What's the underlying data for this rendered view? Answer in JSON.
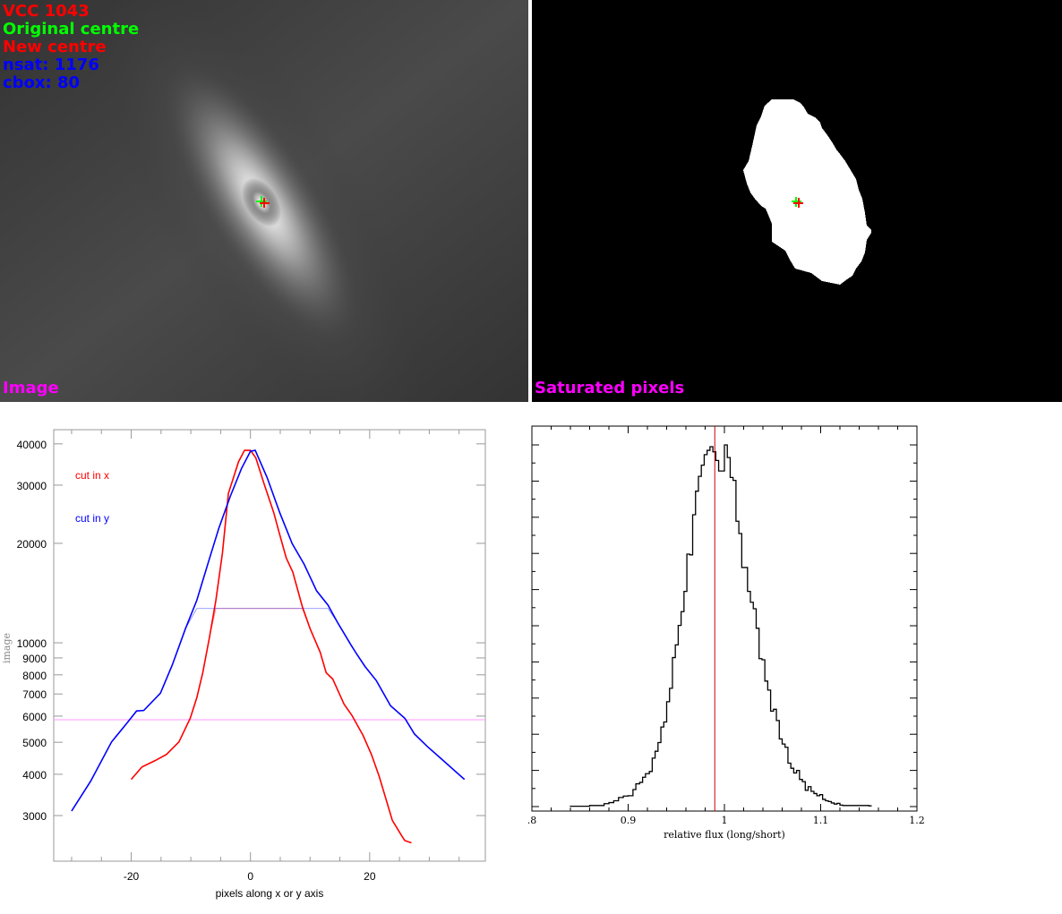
{
  "image_panel": {
    "overlay_lines": [
      {
        "text": "VCC 1043",
        "color": "#ff0000"
      },
      {
        "text": "Original centre",
        "color": "#00ff00"
      },
      {
        "text": "New centre",
        "color": "#ff0000"
      },
      {
        "text": "nsat: 1176",
        "color": "#0000ff"
      },
      {
        "text": "cbox: 80",
        "color": "#0000ff"
      }
    ],
    "label": "Image",
    "label_color": "#ff00ff",
    "original_centre_color": "#00ff00",
    "new_centre_color": "#ff0000"
  },
  "saturation_panel": {
    "label": "Saturated pixels",
    "label_color": "#ff00ff"
  },
  "chart_data": [
    {
      "type": "line",
      "xlabel": "pixels along x or y axis",
      "ylabel": "image",
      "yscale": "log",
      "xlim": [
        -33,
        39.4
      ],
      "ylim": [
        2183,
        44150
      ],
      "xticks": [
        -20,
        0,
        20
      ],
      "yticks": [
        3000,
        4000,
        5000,
        6000,
        7000,
        8000,
        9000,
        10000,
        20000,
        30000,
        40000
      ],
      "grid": false,
      "legend_placement": "top-left",
      "hline": {
        "y": 5850,
        "color": "#ff99ff"
      },
      "series": [
        {
          "name": "cut in x",
          "color": "#ff0000",
          "model_clip": 12700,
          "x": [
            -20,
            -18.2,
            -16,
            -14.1,
            -12,
            -10.1,
            -9,
            -8,
            -6.9,
            -5.8,
            -4.7,
            -3.7,
            -2,
            -1,
            0,
            0.9,
            2.3,
            3.9,
            4.9,
            6,
            7.1,
            8.7,
            10,
            11.7,
            12.7,
            13.8,
            15.7,
            17,
            18.9,
            20.3,
            21.6,
            23.8,
            25.4,
            25.9,
            27
          ],
          "y": [
            3860,
            4210,
            4400,
            4590,
            5010,
            5910,
            6820,
            8120,
            10330,
            13440,
            18680,
            28320,
            35300,
            38240,
            38240,
            36280,
            30220,
            24800,
            21280,
            18070,
            16370,
            12870,
            11040,
            9360,
            8120,
            7770,
            6520,
            6040,
            5240,
            4590,
            3940,
            2900,
            2600,
            2520,
            2480
          ]
        },
        {
          "name": "cut in y",
          "color": "#0000ff",
          "model_clip": 12700,
          "x": [
            -30,
            -26.8,
            -23.3,
            -20.9,
            -19.1,
            -17.9,
            -15.1,
            -13.1,
            -10.9,
            -9,
            -7,
            -5.3,
            -3.4,
            -1.5,
            0,
            0.8,
            2.8,
            4.9,
            7,
            9,
            11.1,
            13,
            14.6,
            16.8,
            17.8,
            19.2,
            21.1,
            23.5,
            25.9,
            27.5,
            29.7,
            31.8,
            35.9
          ],
          "y": [
            3097,
            3813,
            5012,
            5660,
            6218,
            6240,
            7040,
            8580,
            11040,
            13440,
            17680,
            22230,
            27700,
            33700,
            37980,
            38240,
            31620,
            24800,
            19950,
            17290,
            14360,
            13010,
            11530,
            9890,
            9260,
            8485,
            7690,
            6450,
            5910,
            5300,
            4850,
            4490,
            3860
          ]
        }
      ]
    },
    {
      "type": "histogram",
      "xlabel": "relative flux (long/short)",
      "xlim": [
        0.8,
        1.2
      ],
      "ylim": [
        0,
        1
      ],
      "xticks": [
        0.8,
        0.9,
        1,
        1.1,
        1.2
      ],
      "xtick_labels": [
        ".8",
        "0.9",
        "1",
        "1.1",
        "1.2"
      ],
      "grid": false,
      "vline": {
        "x": 0.99,
        "color": "#cc0000"
      },
      "bin_width": 0.003,
      "bin_start": [
        0.84,
        0.86,
        0.875,
        0.88,
        0.885,
        0.89,
        0.895,
        0.9,
        0.905,
        0.908,
        0.912,
        0.915,
        0.918,
        0.922,
        0.925,
        0.928,
        0.931,
        0.934,
        0.937,
        0.94,
        0.943,
        0.946,
        0.949,
        0.952,
        0.955,
        0.958,
        0.961,
        0.964,
        0.967,
        0.97,
        0.973,
        0.976,
        0.979,
        0.982,
        0.985,
        0.988,
        0.991,
        0.994,
        0.997,
        1.0,
        1.003,
        1.006,
        1.009,
        1.012,
        1.015,
        1.018,
        1.021,
        1.024,
        1.027,
        1.03,
        1.033,
        1.036,
        1.039,
        1.042,
        1.045,
        1.048,
        1.051,
        1.054,
        1.057,
        1.06,
        1.063,
        1.066,
        1.069,
        1.072,
        1.075,
        1.078,
        1.081,
        1.084,
        1.087,
        1.09,
        1.093,
        1.096,
        1.099,
        1.102,
        1.105,
        1.108,
        1.111,
        1.114,
        1.117,
        1.12,
        1.123,
        1.15
      ],
      "values": [
        0.001,
        0.003,
        0.008,
        0.011,
        0.016,
        0.025,
        0.029,
        0.03,
        0.047,
        0.063,
        0.067,
        0.081,
        0.091,
        0.097,
        0.134,
        0.153,
        0.177,
        0.22,
        0.234,
        0.29,
        0.327,
        0.412,
        0.447,
        0.501,
        0.539,
        0.595,
        0.698,
        0.696,
        0.807,
        0.872,
        0.913,
        0.944,
        0.973,
        0.985,
        0.995,
        0.981,
        0.957,
        0.928,
        0.928,
        1.0,
        0.965,
        0.91,
        0.902,
        0.789,
        0.755,
        0.661,
        0.661,
        0.595,
        0.565,
        0.547,
        0.493,
        0.409,
        0.406,
        0.347,
        0.322,
        0.264,
        0.269,
        0.238,
        0.187,
        0.173,
        0.164,
        0.12,
        0.106,
        0.093,
        0.1,
        0.075,
        0.069,
        0.045,
        0.055,
        0.042,
        0.036,
        0.03,
        0.033,
        0.02,
        0.016,
        0.014,
        0.01,
        0.007,
        0.009,
        0.004,
        0.003,
        0.002
      ]
    }
  ]
}
